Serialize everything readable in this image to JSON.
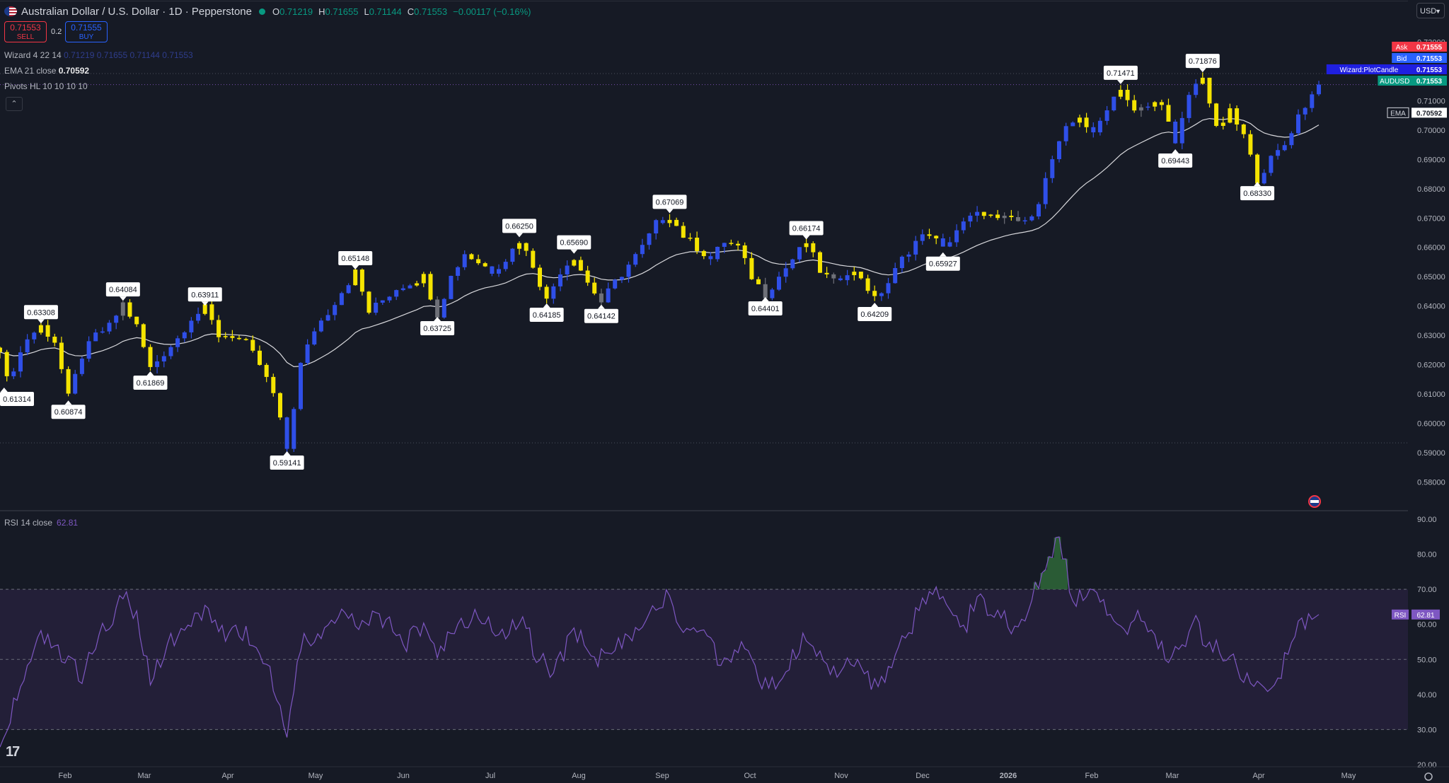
{
  "header": {
    "symbol_title": "Australian Dollar / U.S. Dollar · 1D · Pepperstone",
    "open_label": "O",
    "open": "0.71219",
    "high_label": "H",
    "high": "0.71655",
    "low_label": "L",
    "low": "0.71144",
    "close_label": "C",
    "close": "0.71553",
    "change": "−0.00117 (−0.16%)"
  },
  "trade": {
    "sell_price": "0.71553",
    "sell_label": "SELL",
    "spread": "0.2",
    "buy_price": "0.71555",
    "buy_label": "BUY"
  },
  "indicators": {
    "wizard": "Wizard 4 22 14",
    "wizard_values": "0.71219  0.71655  0.71144  0.71553",
    "ema": "EMA 21 close",
    "ema_value": "0.70592",
    "pivots": "Pivots HL 10 10 10 10",
    "rsi": "RSI 14 close",
    "rsi_value": "62.81"
  },
  "currency_button": "USD",
  "colors": {
    "background": "#161a25",
    "bull_candle": "#2f4fe8",
    "bear_candle": "#f5e400",
    "neutral_candle": "#6e7078",
    "ema_line": "#d8d8dc",
    "rsi_line": "#7e57c2",
    "rsi_band": "#231f38",
    "ask_tag": "#f23645",
    "bid_tag": "#2962ff",
    "wizard_tag": "#1f1fe0",
    "symbol_tag": "#089981"
  },
  "chart_data": [
    {
      "type": "candlestick",
      "title": "Australian Dollar / U.S. Dollar · 1D · Pepperstone",
      "x_ticks": [
        "Feb",
        "Mar",
        "Apr",
        "May",
        "Jun",
        "Jul",
        "Aug",
        "Sep",
        "Oct",
        "Nov",
        "Dec",
        "2026",
        "Feb",
        "Mar",
        "Apr",
        "May"
      ],
      "y_ticks": [
        "0.73000",
        "0.72000",
        "0.71000",
        "0.70000",
        "0.69000",
        "0.68000",
        "0.67000",
        "0.66000",
        "0.65000",
        "0.64000",
        "0.63000",
        "0.62000",
        "0.61000",
        "0.60000",
        "0.59000",
        "0.58000"
      ],
      "ylim": [
        0.5755,
        0.7323
      ],
      "price_points": [
        [
          0,
          0.6258
        ],
        [
          0.6,
          0.6131
        ],
        [
          2,
          0.619
        ],
        [
          4,
          0.629
        ],
        [
          6,
          0.6331
        ],
        [
          8,
          0.628
        ],
        [
          10,
          0.6087
        ],
        [
          12,
          0.623
        ],
        [
          14,
          0.63
        ],
        [
          16,
          0.633
        ],
        [
          18,
          0.6408
        ],
        [
          20,
          0.633
        ],
        [
          22,
          0.6187
        ],
        [
          24,
          0.624
        ],
        [
          26,
          0.629
        ],
        [
          28,
          0.636
        ],
        [
          30,
          0.6391
        ],
        [
          32,
          0.63
        ],
        [
          34,
          0.63
        ],
        [
          36,
          0.627
        ],
        [
          38,
          0.62
        ],
        [
          40,
          0.61
        ],
        [
          42,
          0.5914
        ],
        [
          44,
          0.62
        ],
        [
          46,
          0.632
        ],
        [
          48,
          0.638
        ],
        [
          50,
          0.645
        ],
        [
          52,
          0.6515
        ],
        [
          54,
          0.638
        ],
        [
          56,
          0.642
        ],
        [
          58,
          0.646
        ],
        [
          60,
          0.648
        ],
        [
          62,
          0.65
        ],
        [
          64,
          0.6373
        ],
        [
          66,
          0.65
        ],
        [
          68,
          0.658
        ],
        [
          70,
          0.655
        ],
        [
          72,
          0.652
        ],
        [
          74,
          0.656
        ],
        [
          76,
          0.6625
        ],
        [
          78,
          0.654
        ],
        [
          80,
          0.6418
        ],
        [
          82,
          0.652
        ],
        [
          84,
          0.6569
        ],
        [
          86,
          0.648
        ],
        [
          88,
          0.6414
        ],
        [
          90,
          0.648
        ],
        [
          92,
          0.654
        ],
        [
          94,
          0.66
        ],
        [
          96,
          0.668
        ],
        [
          98,
          0.6707
        ],
        [
          100,
          0.664
        ],
        [
          102,
          0.66
        ],
        [
          104,
          0.656
        ],
        [
          106,
          0.662
        ],
        [
          108,
          0.66
        ],
        [
          110,
          0.65
        ],
        [
          112,
          0.644
        ],
        [
          114,
          0.65
        ],
        [
          116,
          0.656
        ],
        [
          118,
          0.6617
        ],
        [
          120,
          0.652
        ],
        [
          122,
          0.648
        ],
        [
          124,
          0.652
        ],
        [
          126,
          0.65
        ],
        [
          128,
          0.6421
        ],
        [
          130,
          0.648
        ],
        [
          132,
          0.656
        ],
        [
          134,
          0.662
        ],
        [
          136,
          0.665
        ],
        [
          138,
          0.6593
        ],
        [
          140,
          0.666
        ],
        [
          142,
          0.67
        ],
        [
          144,
          0.672
        ],
        [
          146,
          0.669
        ],
        [
          148,
          0.67
        ],
        [
          150,
          0.668
        ],
        [
          152,
          0.676
        ],
        [
          154,
          0.69
        ],
        [
          156,
          0.7
        ],
        [
          158,
          0.705
        ],
        [
          160,
          0.698
        ],
        [
          162,
          0.708
        ],
        [
          164,
          0.7147
        ],
        [
          166,
          0.706
        ],
        [
          168,
          0.708
        ],
        [
          170,
          0.71
        ],
        [
          172,
          0.6944
        ],
        [
          174,
          0.712
        ],
        [
          176,
          0.7188
        ],
        [
          178,
          0.7
        ],
        [
          180,
          0.706
        ],
        [
          182,
          0.698
        ],
        [
          184,
          0.6833
        ],
        [
          186,
          0.69
        ],
        [
          188,
          0.695
        ],
        [
          190,
          0.705
        ],
        [
          192,
          0.712
        ],
        [
          193,
          0.715
        ]
      ],
      "ema_last": 0.70592,
      "pivots": {
        "highs": [
          {
            "i": 6,
            "label": "0.63308"
          },
          {
            "i": 18,
            "label": "0.64084"
          },
          {
            "i": 30,
            "label": "0.63911"
          },
          {
            "i": 52,
            "label": "0.65148"
          },
          {
            "i": 76,
            "label": "0.66250"
          },
          {
            "i": 84,
            "label": "0.65690"
          },
          {
            "i": 98,
            "label": "0.67069"
          },
          {
            "i": 118,
            "label": "0.66174"
          },
          {
            "i": 164,
            "label": "0.71471"
          },
          {
            "i": 176,
            "label": "0.71876"
          }
        ],
        "lows": [
          {
            "i": 0.6,
            "label": "0.61314"
          },
          {
            "i": 10,
            "label": "0.60874"
          },
          {
            "i": 22,
            "label": "0.61869"
          },
          {
            "i": 42,
            "label": "0.59141"
          },
          {
            "i": 64,
            "label": "0.63725"
          },
          {
            "i": 80,
            "label": "0.64185"
          },
          {
            "i": 88,
            "label": "0.64142"
          },
          {
            "i": 112,
            "label": "0.64401"
          },
          {
            "i": 128,
            "label": "0.64209"
          },
          {
            "i": 138,
            "label": "0.65927"
          },
          {
            "i": 172,
            "label": "0.69443"
          },
          {
            "i": 184,
            "label": "0.68330"
          }
        ]
      },
      "price_tags": [
        {
          "name": "Ask",
          "value": "0.71555",
          "color": "#f23645"
        },
        {
          "name": "Bid",
          "value": "0.71553",
          "color": "#2962ff"
        },
        {
          "name": "Wizard:PlotCandle",
          "value": "0.71553",
          "color": "#1f1fe0"
        },
        {
          "name": "AUDUSD",
          "value": "0.71553",
          "color": "#089981"
        },
        {
          "name": "EMA",
          "value": "0.70592",
          "color": "#ffffff"
        }
      ]
    },
    {
      "type": "line",
      "title": "RSI 14 close",
      "y_ticks": [
        "90.00",
        "80.00",
        "70.00",
        "60.00",
        "50.00",
        "40.00",
        "30.00",
        "20.00"
      ],
      "ylim": [
        20,
        90
      ],
      "bands": [
        30,
        50,
        70
      ],
      "last_value": "62.81",
      "tag_label": "RSI",
      "rsi_points": [
        [
          0,
          28
        ],
        [
          3,
          40
        ],
        [
          6,
          58
        ],
        [
          9,
          52
        ],
        [
          12,
          45
        ],
        [
          15,
          58
        ],
        [
          18,
          68
        ],
        [
          20,
          62
        ],
        [
          22,
          44
        ],
        [
          25,
          56
        ],
        [
          28,
          60
        ],
        [
          30,
          64
        ],
        [
          33,
          56
        ],
        [
          36,
          58
        ],
        [
          38,
          50
        ],
        [
          40,
          44
        ],
        [
          42,
          28
        ],
        [
          44,
          54
        ],
        [
          47,
          58
        ],
        [
          50,
          62
        ],
        [
          53,
          60
        ],
        [
          56,
          62
        ],
        [
          59,
          54
        ],
        [
          62,
          60
        ],
        [
          64,
          52
        ],
        [
          67,
          60
        ],
        [
          70,
          64
        ],
        [
          73,
          56
        ],
        [
          76,
          62
        ],
        [
          79,
          50
        ],
        [
          81,
          46
        ],
        [
          84,
          58
        ],
        [
          87,
          50
        ],
        [
          90,
          54
        ],
        [
          93,
          58
        ],
        [
          96,
          66
        ],
        [
          98,
          68
        ],
        [
          100,
          58
        ],
        [
          103,
          56
        ],
        [
          106,
          48
        ],
        [
          109,
          54
        ],
        [
          111,
          44
        ],
        [
          113,
          42
        ],
        [
          115,
          48
        ],
        [
          118,
          56
        ],
        [
          120,
          50
        ],
        [
          122,
          46
        ],
        [
          125,
          50
        ],
        [
          128,
          42
        ],
        [
          131,
          50
        ],
        [
          134,
          62
        ],
        [
          137,
          70
        ],
        [
          139,
          64
        ],
        [
          141,
          58
        ],
        [
          143,
          68
        ],
        [
          145,
          64
        ],
        [
          147,
          62
        ],
        [
          149,
          58
        ],
        [
          151,
          66
        ],
        [
          153,
          78
        ],
        [
          155,
          84
        ],
        [
          157,
          68
        ],
        [
          159,
          68
        ],
        [
          161,
          66
        ],
        [
          163,
          62
        ],
        [
          165,
          60
        ],
        [
          167,
          62
        ],
        [
          169,
          58
        ],
        [
          171,
          50
        ],
        [
          173,
          54
        ],
        [
          175,
          60
        ],
        [
          177,
          54
        ],
        [
          179,
          52
        ],
        [
          181,
          48
        ],
        [
          183,
          42
        ],
        [
          185,
          40
        ],
        [
          187,
          44
        ],
        [
          189,
          56
        ],
        [
          191,
          60
        ],
        [
          193,
          62.81
        ]
      ]
    }
  ]
}
